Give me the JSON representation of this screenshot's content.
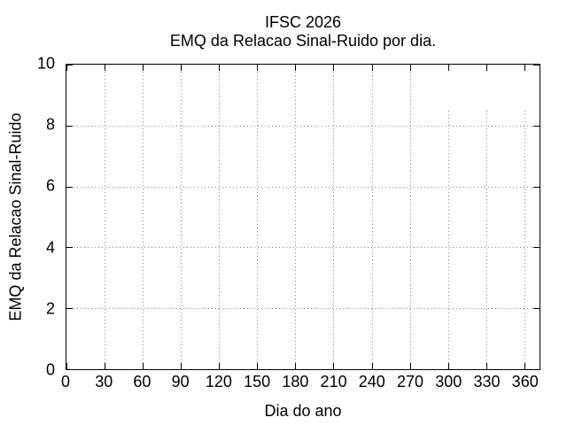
{
  "chart_data": {
    "type": "line",
    "title": "IFSC 2026",
    "subtitle": "EMQ da Relacao Sinal-Ruido por dia.",
    "xlabel": "Dia do ano",
    "ylabel": "EMQ da Relacao Sinal-Ruido",
    "xlim": [
      0,
      372
    ],
    "ylim": [
      0,
      10
    ],
    "xticks": [
      0,
      30,
      60,
      90,
      120,
      150,
      180,
      210,
      240,
      270,
      300,
      330,
      360
    ],
    "yticks": [
      0,
      2,
      4,
      6,
      8,
      10
    ],
    "grid": "dotted",
    "legend": "none",
    "series": [],
    "note": "empty axes - no data series plotted",
    "partial_vertical_gridlines": {
      "x": [
        300,
        330,
        360
      ],
      "y_start": 8.5
    },
    "colors": {
      "axis": "#000000",
      "text": "#000000",
      "grid": "#878787",
      "background": "#ffffff"
    }
  }
}
